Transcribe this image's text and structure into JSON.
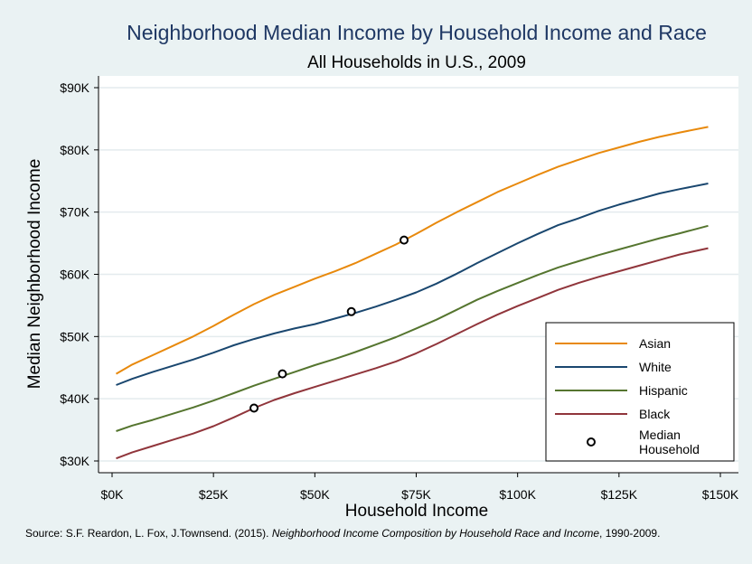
{
  "chart_data": {
    "type": "line",
    "title": "Neighborhood Median Income by Household Income and Race",
    "subtitle": "All Households in U.S., 2009",
    "xlabel": "Household Income",
    "ylabel": "Median Neighborhood Income",
    "xlim": [
      0,
      150000
    ],
    "ylim": [
      30000,
      90000
    ],
    "x_ticks": [
      0,
      25000,
      50000,
      75000,
      100000,
      125000,
      150000
    ],
    "x_tick_labels": [
      "$0K",
      "$25K",
      "$50K",
      "$75K",
      "$100K",
      "$125K",
      "$150K"
    ],
    "y_ticks": [
      30000,
      40000,
      50000,
      60000,
      70000,
      80000,
      90000
    ],
    "y_tick_labels": [
      "$30K",
      "$40K",
      "$50K",
      "$60K",
      "$70K",
      "$80K",
      "$90K"
    ],
    "grid": "horizontal",
    "legend_position": "bottom-right",
    "series": [
      {
        "name": "Asian",
        "color": "#e8890c",
        "x": [
          1000,
          5000,
          10000,
          15000,
          20000,
          25000,
          30000,
          35000,
          40000,
          45000,
          50000,
          55000,
          60000,
          65000,
          70000,
          75000,
          80000,
          85000,
          90000,
          95000,
          100000,
          105000,
          110000,
          115000,
          120000,
          125000,
          130000,
          135000,
          140000,
          147000
        ],
        "values": [
          44000,
          45500,
          47000,
          48500,
          50000,
          51700,
          53500,
          55200,
          56700,
          58000,
          59300,
          60500,
          61800,
          63300,
          64800,
          66500,
          68300,
          70000,
          71600,
          73200,
          74600,
          76000,
          77300,
          78400,
          79500,
          80400,
          81300,
          82100,
          82800,
          83700
        ]
      },
      {
        "name": "White",
        "color": "#1a476f",
        "x": [
          1000,
          5000,
          10000,
          15000,
          20000,
          25000,
          30000,
          35000,
          40000,
          45000,
          50000,
          55000,
          60000,
          65000,
          70000,
          75000,
          80000,
          85000,
          90000,
          95000,
          100000,
          105000,
          110000,
          115000,
          120000,
          125000,
          130000,
          135000,
          140000,
          147000
        ],
        "values": [
          42200,
          43200,
          44300,
          45300,
          46300,
          47400,
          48600,
          49600,
          50500,
          51300,
          52000,
          52900,
          53800,
          54800,
          55900,
          57100,
          58500,
          60100,
          61800,
          63400,
          65000,
          66500,
          67900,
          69000,
          70200,
          71200,
          72100,
          73000,
          73700,
          74600
        ]
      },
      {
        "name": "Hispanic",
        "color": "#55752f",
        "x": [
          1000,
          5000,
          10000,
          15000,
          20000,
          25000,
          30000,
          35000,
          40000,
          45000,
          50000,
          55000,
          60000,
          65000,
          70000,
          75000,
          80000,
          85000,
          90000,
          95000,
          100000,
          105000,
          110000,
          115000,
          120000,
          125000,
          130000,
          135000,
          140000,
          147000
        ],
        "values": [
          34800,
          35700,
          36600,
          37600,
          38600,
          39700,
          40900,
          42100,
          43200,
          44300,
          45400,
          46400,
          47500,
          48700,
          49900,
          51300,
          52700,
          54300,
          55900,
          57300,
          58600,
          59900,
          61100,
          62100,
          63100,
          64000,
          64900,
          65800,
          66600,
          67800
        ]
      },
      {
        "name": "Black",
        "color": "#90353b",
        "x": [
          1000,
          5000,
          10000,
          15000,
          20000,
          25000,
          30000,
          35000,
          40000,
          45000,
          50000,
          55000,
          60000,
          65000,
          70000,
          75000,
          80000,
          85000,
          90000,
          95000,
          100000,
          105000,
          110000,
          115000,
          120000,
          125000,
          130000,
          135000,
          140000,
          147000
        ],
        "values": [
          30400,
          31400,
          32400,
          33400,
          34400,
          35600,
          37000,
          38500,
          39800,
          40900,
          41900,
          42900,
          43900,
          44900,
          46000,
          47300,
          48800,
          50400,
          52000,
          53500,
          54900,
          56200,
          57500,
          58600,
          59600,
          60500,
          61400,
          62300,
          63200,
          64200
        ]
      },
      {
        "name": "Median Household",
        "type": "scatter",
        "marker": "open-circle",
        "color": "#000000",
        "points": [
          {
            "x": 72000,
            "y": 65500
          },
          {
            "x": 59000,
            "y": 54000
          },
          {
            "x": 42000,
            "y": 44000
          },
          {
            "x": 35000,
            "y": 38500
          }
        ]
      }
    ],
    "source_prefix": "Source: S.F. Reardon, L. Fox, J.Townsend. (2015). ",
    "source_title": "Neighborhood Income Composition by Household Race and Income",
    "source_suffix": ", 1990-2009."
  }
}
